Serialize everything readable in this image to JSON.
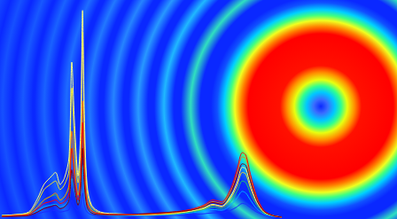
{
  "chart_data": {
    "type": "line",
    "x": [
      0,
      15,
      30,
      40,
      47,
      54,
      60,
      65,
      70,
      75,
      78,
      81,
      85,
      88,
      90,
      92,
      95,
      100,
      110,
      130,
      160,
      190,
      210,
      225,
      235,
      245,
      255,
      262,
      268,
      272,
      277,
      284,
      292,
      302,
      312
    ],
    "xlim": [
      0,
      312
    ],
    "ylim": [
      0,
      250
    ],
    "grid": false,
    "tick_labels": false,
    "series": [
      {
        "color": "#1a2cff",
        "values": [
          1,
          1,
          2,
          4,
          6,
          7,
          8,
          6,
          7,
          9,
          20,
          12,
          8,
          14,
          28,
          14,
          6,
          3,
          2,
          2,
          2,
          2,
          3,
          4,
          5,
          5,
          8,
          12,
          16,
          15,
          11,
          6,
          3,
          1,
          0
        ]
      },
      {
        "color": "#00b4ff",
        "values": [
          1,
          2,
          3,
          8,
          12,
          14,
          15,
          12,
          14,
          20,
          45,
          30,
          16,
          30,
          60,
          30,
          12,
          6,
          3,
          2,
          2,
          3,
          5,
          7,
          9,
          8,
          14,
          22,
          30,
          28,
          20,
          10,
          4,
          1,
          0
        ]
      },
      {
        "color": "#20d060",
        "values": [
          2,
          2,
          4,
          12,
          20,
          24,
          26,
          20,
          24,
          35,
          80,
          55,
          25,
          50,
          110,
          55,
          20,
          9,
          4,
          3,
          3,
          4,
          6,
          9,
          12,
          10,
          18,
          30,
          42,
          40,
          28,
          14,
          5,
          2,
          0
        ]
      },
      {
        "color": "#f0e020",
        "values": [
          2,
          3,
          5,
          18,
          32,
          38,
          42,
          32,
          38,
          55,
          150,
          90,
          40,
          85,
          215,
          100,
          32,
          12,
          5,
          3,
          3,
          4,
          7,
          10,
          14,
          12,
          22,
          36,
          52,
          50,
          34,
          17,
          6,
          2,
          0
        ]
      },
      {
        "color": "#ffff80",
        "values": [
          2,
          3,
          6,
          22,
          38,
          46,
          52,
          38,
          46,
          70,
          180,
          110,
          48,
          105,
          240,
          120,
          38,
          14,
          6,
          4,
          3,
          5,
          7,
          11,
          15,
          13,
          24,
          40,
          58,
          56,
          38,
          18,
          6,
          2,
          0
        ]
      },
      {
        "color": "#ff8000",
        "values": [
          1,
          2,
          4,
          12,
          20,
          24,
          28,
          20,
          24,
          38,
          100,
          60,
          26,
          58,
          135,
          66,
          20,
          8,
          4,
          3,
          3,
          5,
          8,
          13,
          18,
          16,
          30,
          50,
          70,
          68,
          46,
          22,
          7,
          2,
          0
        ]
      },
      {
        "color": "#ff0000",
        "values": [
          1,
          2,
          3,
          10,
          16,
          18,
          20,
          16,
          18,
          28,
          80,
          48,
          20,
          45,
          110,
          52,
          16,
          7,
          4,
          3,
          4,
          6,
          9,
          14,
          20,
          18,
          33,
          55,
          75,
          72,
          50,
          24,
          8,
          2,
          0
        ]
      },
      {
        "color": "#800000",
        "values": [
          1,
          1,
          2,
          6,
          10,
          12,
          14,
          10,
          12,
          20,
          55,
          34,
          14,
          32,
          80,
          38,
          12,
          5,
          3,
          3,
          4,
          6,
          8,
          12,
          17,
          15,
          28,
          46,
          62,
          60,
          42,
          20,
          7,
          2,
          0
        ]
      }
    ]
  }
}
